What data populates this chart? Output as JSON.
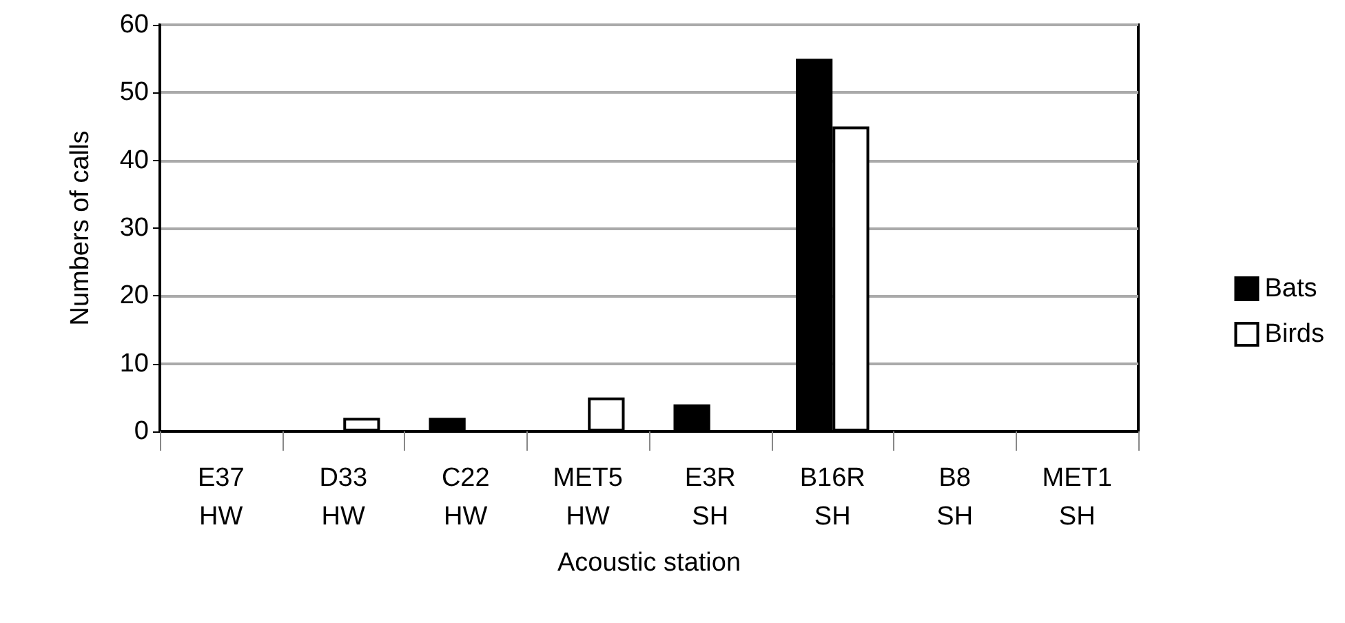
{
  "chart_data": {
    "type": "bar",
    "xlabel": "Acoustic station",
    "ylabel": "Numbers of calls",
    "categories": [
      "E37\nHW",
      "D33\nHW",
      "C22\nHW",
      "MET5\nHW",
      "E3R\nSH",
      "B16R\nSH",
      "B8\nSH",
      "MET1\nSH"
    ],
    "series": [
      {
        "name": "Bats",
        "color": "#000000",
        "values": [
          0,
          0,
          2,
          0,
          4,
          55,
          0,
          0
        ]
      },
      {
        "name": "Birds",
        "color": "#ffffff",
        "values": [
          0,
          2,
          0,
          5,
          0,
          45,
          0,
          0
        ]
      }
    ],
    "ylim": [
      0,
      60
    ],
    "yticks": [
      0,
      10,
      20,
      30,
      40,
      50,
      60
    ],
    "grid": "y",
    "legend": "right"
  }
}
